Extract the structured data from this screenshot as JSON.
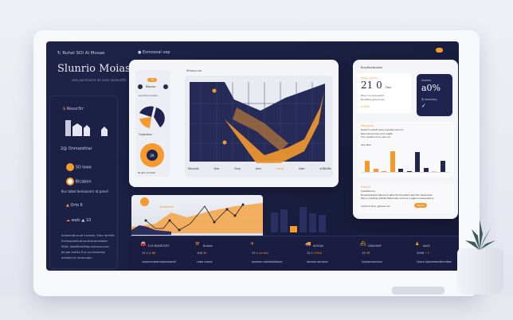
{
  "header": {
    "brand": "Ruhel SOI Ai Mosae",
    "title": "Slunrio Moiase",
    "subtitle": "vwe pacmavire de nuce womcotfe",
    "center_label": "Esmosoal vep"
  },
  "sidebar": {
    "card_title": "Rousr3rr",
    "items": [
      {
        "icon": "dollar-icon",
        "label": "Onmaiottiar",
        "prefix": "2@"
      },
      {
        "icon": "coin-icon",
        "label": "SO lowe"
      },
      {
        "icon": "coin-icon",
        "label": "Blcabon"
      },
      {
        "label": "Kus tobol benaioamr at pane!"
      },
      {
        "icon": "warning-icon",
        "label": "Orts 6"
      },
      {
        "icon": "cloud-icon",
        "label": "wals ▲ 10"
      }
    ],
    "footer": [
      "Arsmanail aure lucasen, Emo rarrtiltt",
      "Ecteoubrolbuttuscitustarcabeter",
      "EIDA: diabDtsrtifutg unicorrocurd",
      "Jel.gar ime&z Eny yu.tmoenng",
      "octeets lei muaccopu"
    ]
  },
  "center_card": {
    "title": "Mrbncu.bo",
    "mini": {
      "badge": "10",
      "label": "Roovor",
      "legend": "Aua Socrra idlru",
      "pie_label": "Ovtprotso",
      "ring_value": "2lt",
      "ring_caption": "Ps pbo.dr bhte"
    },
    "x_ticks": [
      "Ebupoly",
      "Doa",
      "Dcip",
      "Ams",
      "sucfd",
      "Dwh",
      "a/IDAIDs"
    ],
    "colors": {
      "accent": "#f49a2f",
      "navy": "#1f2350"
    }
  },
  "right_card": {
    "title": "Brsyftocbcutbn",
    "stat_label": "SDPlo I ampai",
    "stat_value": "21 0",
    "stat_unit": "Ors",
    "stat_lines": [
      "Dlaoc so eluueecim",
      "Nuabboe alas ihvea"
    ],
    "stat_foot": "4 AOO",
    "dark_label": "Uoveve",
    "dark_value": "a0%",
    "dark_sub": "@ lbanmons",
    "chart_title": "Ebmocuo",
    "chart_lines": [
      "Desboh soatxE doiss Anpstbecueriocd",
      "Beecrab ebocsle eorb aaeEa",
      "Tooc sesbboot-roo eeb cou"
    ],
    "chart_sub": "Aby slber",
    "bars": [
      {
        "v": 0.55,
        "c": "#f49a2f"
      },
      {
        "v": 0.15,
        "c": "#f49a2f"
      },
      {
        "v": 0.05,
        "c": "#f49a2f"
      },
      {
        "v": 1.0,
        "c": "#f49a2f"
      },
      {
        "v": 0.15,
        "c": "#24284e"
      },
      {
        "v": 0.03,
        "c": "#24284e"
      },
      {
        "v": 0.95,
        "c": "#24284e"
      },
      {
        "v": 0.2,
        "c": "#24284e"
      },
      {
        "v": 0.02,
        "c": "#c9cbd6"
      },
      {
        "v": 0.55,
        "c": "#24284e"
      }
    ],
    "note_title": "Eubyurt",
    "note_sub": "Srsedisbocre",
    "note_line1": "Broedearbedso Meraurre abhe Encbyoutbre ebsr Ear ubsacohes",
    "note_line2": "Ebnuu cutlobas abtdbe Ebauroste and ace a Agerne eolausobone",
    "note_foot": "Ambiont Sbar  gabdaie  sso",
    "note_button": "Ebbue"
  },
  "lower": {
    "label": "Bolobnes",
    "bars": [
      0.62,
      0.72,
      0.2,
      0.8,
      0.6,
      0.55
    ]
  },
  "stats": [
    {
      "icon": "car-icon",
      "title": "E1S BOAROCRT",
      "val1": "13 1",
      "val2": "A 88",
      "desc": "unpornoroberntopoolsoroft"
    },
    {
      "icon": "tool-icon",
      "title": "Bueam",
      "val1": "108",
      "val2": "30",
      "desc": "Lowe sraose"
    },
    {
      "icon": "plane-icon",
      "title": "",
      "val1": "23 1",
      "val2": "ud ata",
      "desc": "Ayerooe urbiobarfbbevd"
    },
    {
      "icon": "truck-icon",
      "title": "AOlOAS",
      "val1": "13 1",
      "val2": "OOLU",
      "desc": "Aorsrea aecitose"
    },
    {
      "icon": "ship-icon",
      "title": "UDAONSP",
      "val1": "13",
      "val2": "5R",
      "desc": "Uqubanoourourr"
    },
    {
      "icon": "user-icon",
      "title": "Ao0S",
      "val1": "2006",
      "val2": "•  1",
      "desc": "Opore Abyerrebosbtrrefbea"
    }
  ]
}
